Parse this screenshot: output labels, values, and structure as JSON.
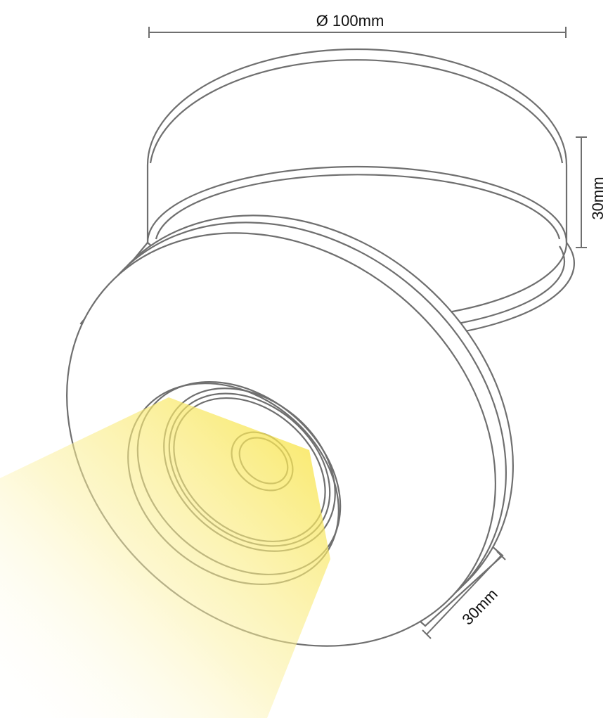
{
  "dimensions": {
    "diameter": "Ø 100mm",
    "height": "30mm",
    "head_depth": "30mm"
  }
}
